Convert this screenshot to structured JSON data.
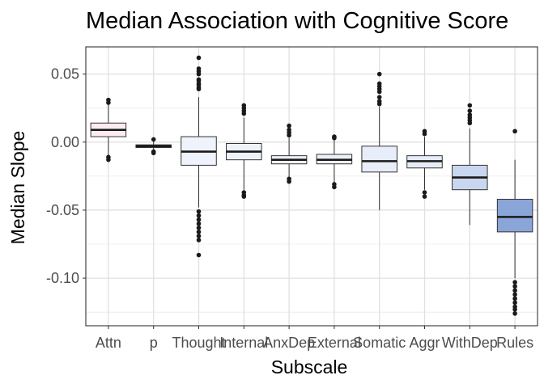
{
  "chart_data": {
    "type": "box",
    "title": "Median Association with Cognitive Score",
    "xlabel": "Subscale",
    "ylabel": "Median Slope",
    "ylim": [
      -0.135,
      0.07
    ],
    "yticks": [
      {
        "value": 0.05,
        "label": "0.05"
      },
      {
        "value": 0.0,
        "label": "0.00"
      },
      {
        "value": -0.05,
        "label": "-0.05"
      },
      {
        "value": -0.1,
        "label": "-0.10"
      }
    ],
    "grid": true,
    "categories": [
      "Attn",
      "p",
      "Thought",
      "Internal",
      "AnxDep",
      "External",
      "Somatic",
      "Aggr",
      "WithDep",
      "Rules"
    ],
    "boxes": [
      {
        "category": "Attn",
        "fill": "#fcecef",
        "whisker_low": -0.01,
        "q1": 0.004,
        "median": 0.009,
        "q3": 0.014,
        "whisker_high": 0.028,
        "outliers": [
          0.031,
          0.029,
          -0.011,
          -0.013
        ]
      },
      {
        "category": "p",
        "fill": "#f4f1f8",
        "whisker_low": -0.006,
        "q1": -0.004,
        "median": -0.003,
        "q3": -0.002,
        "whisker_high": 0.001,
        "outliers": [
          0.002,
          -0.007,
          -0.008
        ]
      },
      {
        "category": "Thought",
        "fill": "#eff3fb",
        "whisker_low": -0.048,
        "q1": -0.017,
        "median": -0.007,
        "q3": 0.004,
        "whisker_high": 0.033,
        "outliers": [
          0.062,
          0.054,
          0.052,
          0.05,
          0.046,
          0.045,
          0.043,
          0.042,
          0.04,
          0.039,
          -0.051,
          -0.054,
          -0.057,
          -0.06,
          -0.063,
          -0.066,
          -0.069,
          -0.072,
          -0.083
        ]
      },
      {
        "category": "Internal",
        "fill": "#eef2fb",
        "whisker_low": -0.035,
        "q1": -0.013,
        "median": -0.007,
        "q3": -0.001,
        "whisker_high": 0.018,
        "outliers": [
          0.027,
          0.025,
          0.023,
          0.021,
          -0.037,
          -0.039,
          -0.04
        ]
      },
      {
        "category": "AnxDep",
        "fill": "#edf1fa",
        "whisker_low": -0.026,
        "q1": -0.016,
        "median": -0.013,
        "q3": -0.01,
        "whisker_high": 0.003,
        "outliers": [
          0.012,
          0.009,
          0.007,
          0.005,
          -0.027,
          -0.029
        ]
      },
      {
        "category": "External",
        "fill": "#ecf0fa",
        "whisker_low": -0.03,
        "q1": -0.016,
        "median": -0.013,
        "q3": -0.009,
        "whisker_high": 0.002,
        "outliers": [
          0.004,
          0.003,
          -0.031,
          -0.033
        ]
      },
      {
        "category": "Somatic",
        "fill": "#e7edf9",
        "whisker_low": -0.05,
        "q1": -0.022,
        "median": -0.014,
        "q3": -0.003,
        "whisker_high": 0.026,
        "outliers": [
          0.05,
          0.043,
          0.041,
          0.039,
          0.037,
          0.033,
          0.03,
          0.028
        ]
      },
      {
        "category": "Aggr",
        "fill": "#e5ecf8",
        "whisker_low": -0.035,
        "q1": -0.019,
        "median": -0.014,
        "q3": -0.01,
        "whisker_high": 0.004,
        "outliers": [
          0.008,
          0.006,
          -0.037,
          -0.04
        ]
      },
      {
        "category": "WithDep",
        "fill": "#c9d6ef",
        "whisker_low": -0.061,
        "q1": -0.035,
        "median": -0.026,
        "q3": -0.017,
        "whisker_high": 0.01,
        "outliers": [
          0.027,
          0.023,
          0.02,
          0.018,
          0.016,
          0.014
        ]
      },
      {
        "category": "Rules",
        "fill": "#8aa6d8",
        "whisker_low": -0.1,
        "q1": -0.066,
        "median": -0.055,
        "q3": -0.042,
        "whisker_high": -0.013,
        "outliers": [
          0.008,
          -0.103,
          -0.106,
          -0.109,
          -0.112,
          -0.115,
          -0.118,
          -0.121,
          -0.123,
          -0.126
        ]
      }
    ]
  }
}
